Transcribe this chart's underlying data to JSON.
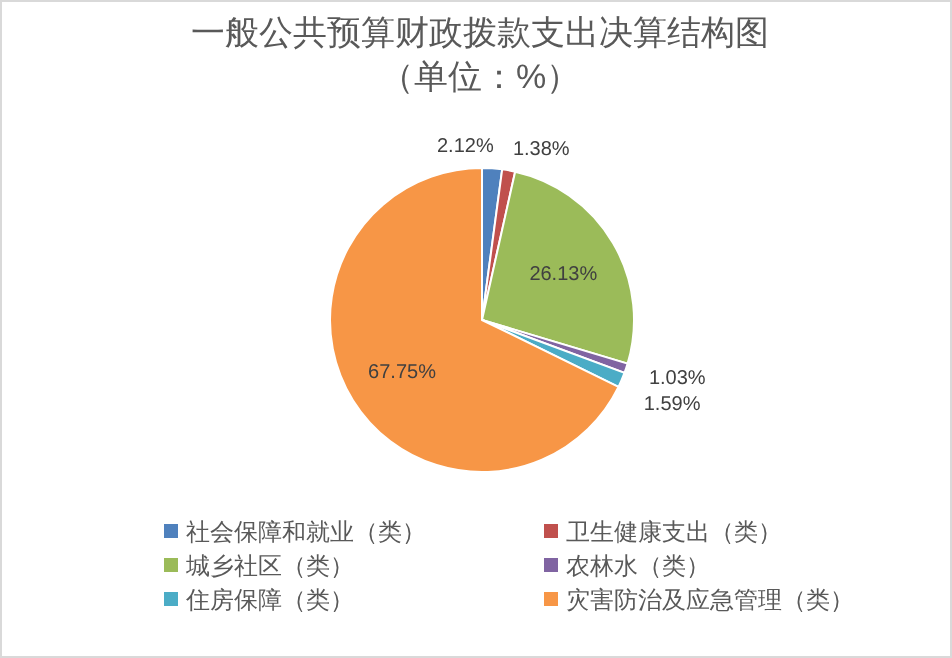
{
  "chart_data": {
    "type": "pie",
    "title": "一般公共预算财政拨款支出决算结构图（单位：%）",
    "categories": [
      "社会保障和就业（类）",
      "卫生健康支出（类）",
      "城乡社区（类）",
      "农林水（类）",
      "住房保障（类）",
      "灾害防治及应急管理（类）"
    ],
    "values": [
      2.12,
      1.38,
      26.13,
      1.03,
      1.59,
      67.75
    ],
    "colors": [
      "#4f81bd",
      "#c0504d",
      "#9bbb59",
      "#8064a2",
      "#4bacc6",
      "#f79646"
    ],
    "value_labels": [
      "2.12%",
      "1.38%",
      "26.13%",
      "1.03%",
      "1.59%",
      "67.75%"
    ],
    "legend": "bottom"
  }
}
